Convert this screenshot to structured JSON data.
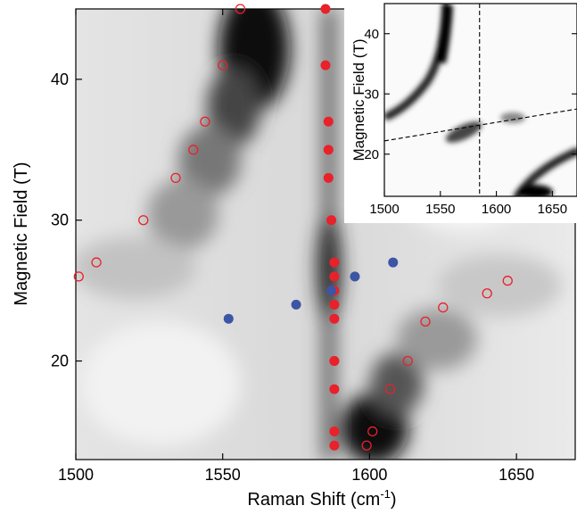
{
  "chart_data": [
    {
      "type": "scatter",
      "xlabel": "Raman Shift (cm",
      "xlabel_sup": "-1",
      "xlabel_tail": ")",
      "ylabel": "Magnetic Field (T)",
      "xlim": [
        1500,
        1670
      ],
      "ylim": [
        13,
        45
      ],
      "xticks": [
        1500,
        1550,
        1600,
        1650
      ],
      "yticks": [
        20,
        30,
        40
      ],
      "background": "grayscale intensity map",
      "colors": {
        "filled_red": "#e8212a",
        "open_red": "#e8212a",
        "filled_blue": "#3c55a5"
      },
      "series": [
        {
          "marker": "filled-circle-red",
          "x": [
            1585,
            1585,
            1586,
            1586,
            1586,
            1587,
            1588,
            1588,
            1588,
            1588,
            1588,
            1588,
            1588,
            1588,
            1588,
            1588
          ],
          "y": [
            45,
            41,
            37,
            35,
            33,
            30,
            27,
            26,
            25,
            24,
            23,
            20,
            18,
            15,
            14,
            20
          ]
        },
        {
          "marker": "open-circle-red",
          "x": [
            1556,
            1550,
            1544,
            1540,
            1534,
            1523,
            1507,
            1501,
            1599,
            1601,
            1607,
            1613,
            1619,
            1625,
            1640,
            1647
          ],
          "y": [
            45,
            41,
            37,
            35,
            33,
            30,
            27,
            26,
            14,
            15,
            18,
            20,
            22.8,
            23.8,
            24.8,
            25.7
          ]
        },
        {
          "marker": "filled-circle-blue",
          "x": [
            1552,
            1575,
            1587,
            1595,
            1608
          ],
          "y": [
            23,
            24,
            25,
            26,
            27
          ]
        }
      ]
    },
    {
      "type": "heatmap",
      "ylabel": "Magnetic Field (T)",
      "xlim": [
        1500,
        1672
      ],
      "ylim": [
        13,
        45
      ],
      "xticks": [
        1500,
        1550,
        1600,
        1650
      ],
      "yticks": [
        20,
        30,
        40
      ],
      "dashed_lines": [
        {
          "orientation": "vertical",
          "x": 1585
        },
        {
          "orientation": "sloped",
          "from": [
            1500,
            22.2
          ],
          "to": [
            1672,
            27.5
          ]
        }
      ]
    }
  ]
}
